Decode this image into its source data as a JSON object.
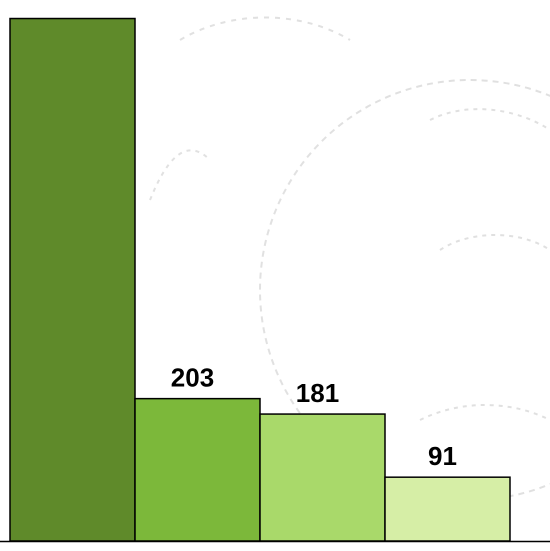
{
  "chart_data": {
    "type": "bar",
    "categories": [
      "",
      "",
      "",
      ""
    ],
    "values": [
      745,
      203,
      181,
      91
    ],
    "data_labels": [
      "",
      "203",
      "181",
      "91"
    ],
    "colors": [
      "#5f8a2a",
      "#7cb83a",
      "#a9d96a",
      "#d6eea6"
    ],
    "bar_stroke": "#000000",
    "ylim": [
      0,
      760
    ],
    "grid": false,
    "legend": "none",
    "title": "",
    "xlabel": "",
    "ylabel": ""
  }
}
